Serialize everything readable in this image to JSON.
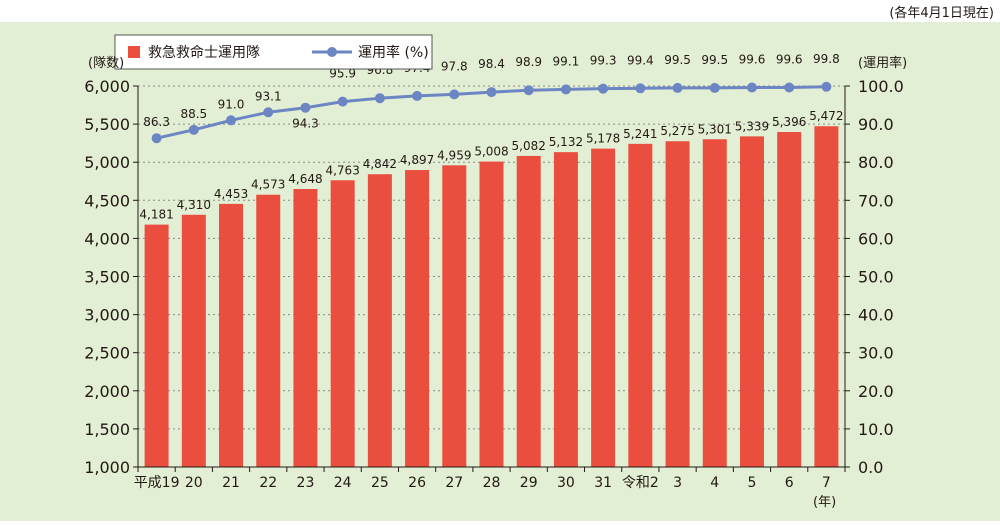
{
  "note": "(各年4月1日現在)",
  "chart_data": {
    "type": "bar+line",
    "categories": [
      "平成19",
      "20",
      "21",
      "22",
      "23",
      "24",
      "25",
      "26",
      "27",
      "28",
      "29",
      "30",
      "31",
      "令和2",
      "3",
      "4",
      "5",
      "6",
      "7"
    ],
    "x_unit_label": "(年)",
    "series": [
      {
        "name": "救急救命士運用隊",
        "kind": "bar",
        "axis": "left",
        "color": "#e94e3f",
        "values": [
          4181,
          4310,
          4453,
          4573,
          4648,
          4763,
          4842,
          4897,
          4959,
          5008,
          5082,
          5132,
          5178,
          5241,
          5275,
          5301,
          5339,
          5396,
          5472
        ],
        "labels": [
          "4,181",
          "4,310",
          "4,453",
          "4,573",
          "4,648",
          "4,763",
          "4,842",
          "4,897",
          "4,959",
          "5,008",
          "5,082",
          "5,132",
          "5,178",
          "5,241",
          "5,275",
          "5,301",
          "5,339",
          "5,396",
          "5,472"
        ]
      },
      {
        "name": "運用率 (%)",
        "kind": "line",
        "axis": "right",
        "color": "#6c86c4",
        "values": [
          86.3,
          88.5,
          91.0,
          93.1,
          94.3,
          95.9,
          96.8,
          97.4,
          97.8,
          98.4,
          98.9,
          99.1,
          99.3,
          99.4,
          99.5,
          99.5,
          99.6,
          99.6,
          99.8
        ],
        "labels": [
          "86.3",
          "88.5",
          "91.0",
          "93.1",
          "94.3",
          "95.9",
          "96.8",
          "97.4",
          "97.8",
          "98.4",
          "98.9",
          "99.1",
          "99.3",
          "99.4",
          "99.5",
          "99.5",
          "99.6",
          "99.6",
          "99.8"
        ]
      }
    ],
    "y_left": {
      "label": "(隊数)",
      "min": 1000,
      "max": 6000,
      "ticks": [
        "1,000",
        "1,500",
        "2,000",
        "2,500",
        "3,000",
        "3,500",
        "4,000",
        "4,500",
        "5,000",
        "5,500",
        "6,000"
      ],
      "tick_values": [
        1000,
        1500,
        2000,
        2500,
        3000,
        3500,
        4000,
        4500,
        5000,
        5500,
        6000
      ]
    },
    "y_right": {
      "label": "(運用率)",
      "min": 0,
      "max": 100,
      "ticks": [
        "0.0",
        "10.0",
        "20.0",
        "30.0",
        "40.0",
        "50.0",
        "60.0",
        "70.0",
        "80.0",
        "90.0",
        "100.0"
      ],
      "tick_values": [
        0,
        10,
        20,
        30,
        40,
        50,
        60,
        70,
        80,
        90,
        100
      ]
    },
    "grid": "dotted horizontal",
    "legend_position": "top-left"
  }
}
